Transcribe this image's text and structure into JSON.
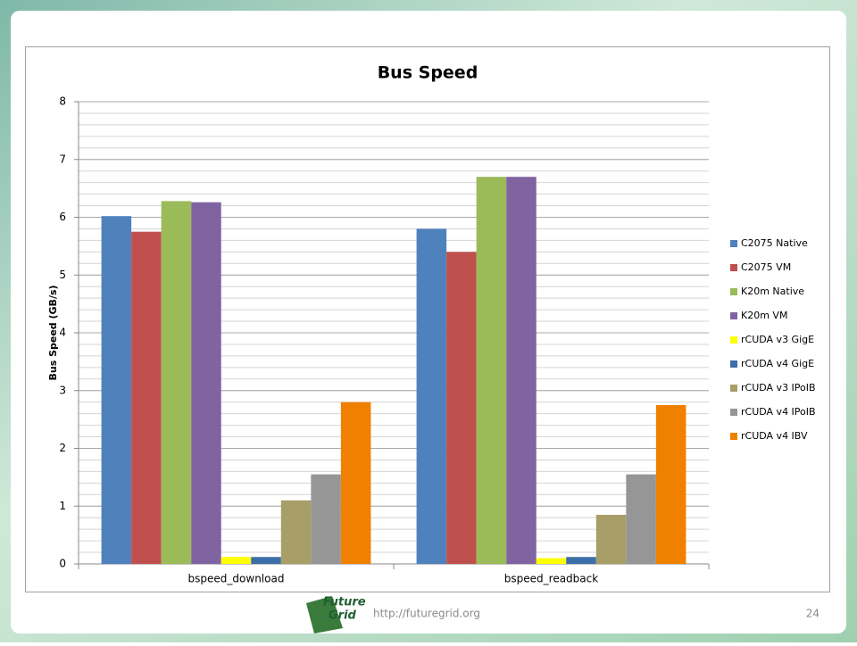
{
  "chart_data": {
    "type": "bar",
    "title": "Bus Speed",
    "y_label": "Bus Speed (GB/s)",
    "categories": [
      "bspeed_download",
      "bspeed_readback"
    ],
    "series": [
      {
        "name": "C2075 Native",
        "color": "#4f81bd",
        "values": [
          6.02,
          5.8
        ]
      },
      {
        "name": "C2075 VM",
        "color": "#c0504d",
        "values": [
          5.75,
          5.4
        ]
      },
      {
        "name": "K20m Native",
        "color": "#9bbb59",
        "values": [
          6.28,
          6.7
        ]
      },
      {
        "name": "K20m VM",
        "color": "#8064a2",
        "values": [
          6.26,
          6.7
        ]
      },
      {
        "name": "rCUDA v3 GigE",
        "color": "#ffff00",
        "values": [
          0.12,
          0.1
        ]
      },
      {
        "name": "rCUDA v4 GigE",
        "color": "#3d6ea8",
        "values": [
          0.12,
          0.12
        ]
      },
      {
        "name": "rCUDA v3 IPoIB",
        "color": "#a89e68",
        "values": [
          1.1,
          0.85
        ]
      },
      {
        "name": "rCUDA v4 IPoIB",
        "color": "#969696",
        "values": [
          1.55,
          1.55
        ]
      },
      {
        "name": "rCUDA v4 IBV",
        "color": "#f08000",
        "values": [
          2.8,
          2.75
        ]
      }
    ],
    "ylim": [
      0,
      8
    ],
    "yticks": [
      0,
      1,
      2,
      3,
      4,
      5,
      6,
      7,
      8
    ],
    "grid": true,
    "minor_grid_step": 0.2,
    "legend": "right"
  },
  "footer": {
    "logo": [
      "Future",
      "Grid"
    ],
    "url": "http://futuregrid.org",
    "page": "24"
  }
}
